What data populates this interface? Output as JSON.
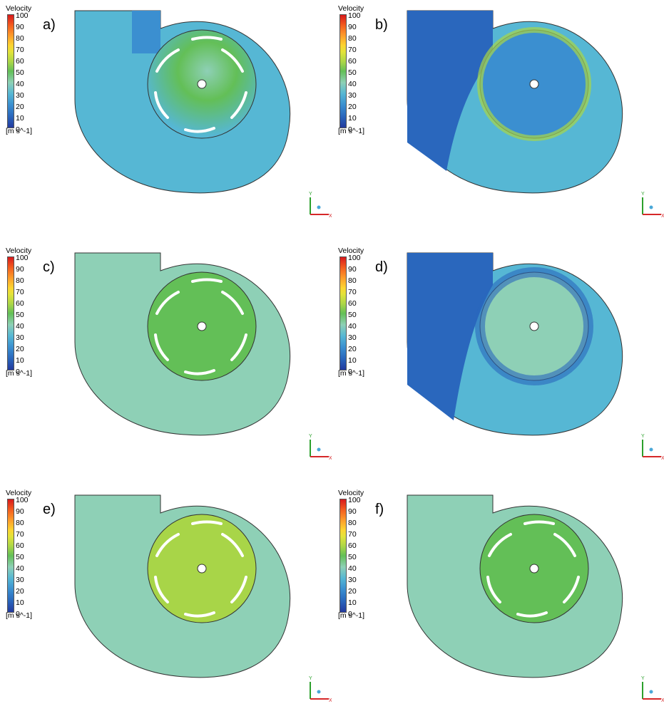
{
  "legend": {
    "title": "Velocity",
    "ticks": [
      "100",
      "90",
      "80",
      "70",
      "60",
      "50",
      "40",
      "30",
      "20",
      "10",
      "0"
    ],
    "units": "[m s^-1]",
    "colors": [
      "#d7191c",
      "#f35c1f",
      "#fd9a2a",
      "#fdd431",
      "#e2e33b",
      "#a8d548",
      "#63bf57",
      "#8ed0b6",
      "#56b7d4",
      "#3b8fd0",
      "#2a67bd",
      "#233a9e"
    ]
  },
  "panels": [
    {
      "label": "a)"
    },
    {
      "label": "b)"
    },
    {
      "label": "c)"
    },
    {
      "label": "d)"
    },
    {
      "label": "e)"
    },
    {
      "label": "f)"
    }
  ],
  "axis": {
    "y": "Y",
    "x": "X"
  }
}
